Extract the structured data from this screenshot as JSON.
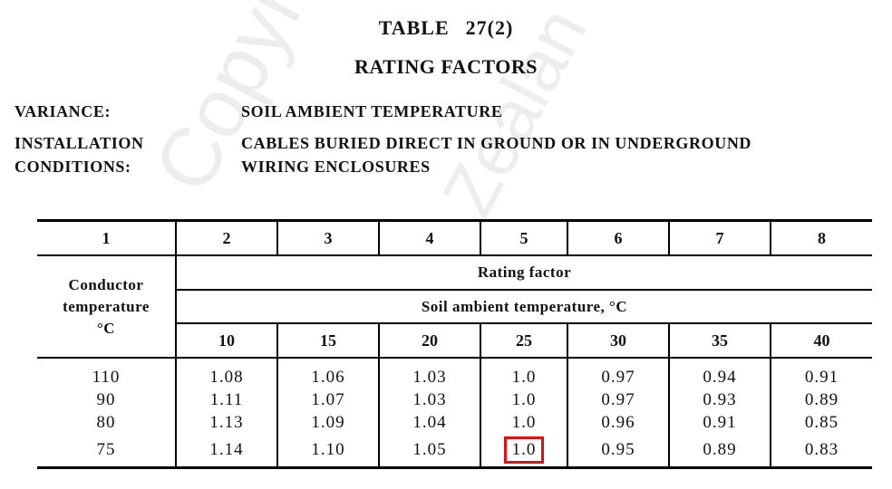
{
  "watermark": {
    "line1": "Copyright Sta",
    "line2": "Zealan"
  },
  "title": {
    "table_label": "TABLE",
    "table_number": "27(2)",
    "subtitle": "RATING FACTORS"
  },
  "variance": {
    "label": "VARIANCE:",
    "value": "SOIL AMBIENT TEMPERATURE"
  },
  "installation": {
    "label_line1": "INSTALLATION",
    "label_line2": "CONDITIONS:",
    "value_line1": "CABLES BURIED DIRECT IN GROUND OR IN UNDERGROUND",
    "value_line2": "WIRING ENCLOSURES"
  },
  "table": {
    "column_numbers": [
      "1",
      "2",
      "3",
      "4",
      "5",
      "6",
      "7",
      "8"
    ],
    "conductor_header": {
      "line1": "Conductor",
      "line2": "temperature",
      "line3": "°C"
    },
    "rating_factor_header": "Rating factor",
    "soil_header": "Soil ambient temperature, °C",
    "soil_temps": [
      "10",
      "15",
      "20",
      "25",
      "30",
      "35",
      "40"
    ],
    "rows": [
      {
        "conductor": "110",
        "factors": [
          "1.08",
          "1.06",
          "1.03",
          "1.0",
          "0.97",
          "0.94",
          "0.91"
        ]
      },
      {
        "conductor": "90",
        "factors": [
          "1.11",
          "1.07",
          "1.03",
          "1.0",
          "0.97",
          "0.93",
          "0.89"
        ]
      },
      {
        "conductor": "80",
        "factors": [
          "1.13",
          "1.09",
          "1.04",
          "1.0",
          "0.96",
          "0.91",
          "0.85"
        ]
      },
      {
        "conductor": "75",
        "factors": [
          "1.14",
          "1.10",
          "1.05",
          "1.0",
          "0.95",
          "0.89",
          "0.83"
        ]
      }
    ],
    "highlight": {
      "row": 3,
      "col": 3,
      "color": "#e01010"
    }
  }
}
